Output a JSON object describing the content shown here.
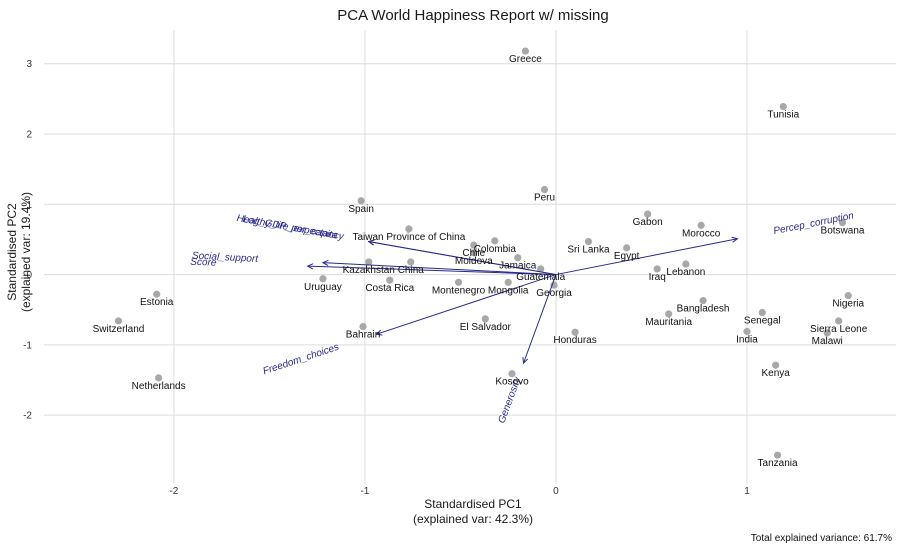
{
  "chart_data": {
    "type": "scatter",
    "title": "PCA World Happiness Report w/ missing",
    "xlabel": [
      "Standardised PC1",
      "(explained var: 42.3%)"
    ],
    "ylabel": [
      "Standardised PC2",
      "(explained var: 19.4%)"
    ],
    "caption": "Total explained variance: 61.7%",
    "xlim": [
      -2.68,
      1.78
    ],
    "ylim": [
      -2.98,
      3.48
    ],
    "xticks": [
      -2,
      -1,
      0,
      1
    ],
    "yticks": [
      -2,
      -1,
      0,
      1,
      2,
      3
    ],
    "grid": true,
    "colors": {
      "point": "#a8a8a8",
      "arrow": "#2a2a8c",
      "grid": "#dcdcdc"
    },
    "points": [
      {
        "label": "Greece",
        "x": -0.16,
        "y": 3.18
      },
      {
        "label": "Tunisia",
        "x": 1.19,
        "y": 2.39
      },
      {
        "label": "Peru",
        "x": -0.06,
        "y": 1.21
      },
      {
        "label": "Spain",
        "x": -1.02,
        "y": 1.05
      },
      {
        "label": "Gabon",
        "x": 0.48,
        "y": 0.86
      },
      {
        "label": "Morocco",
        "x": 0.76,
        "y": 0.7
      },
      {
        "label": "Botswana",
        "x": 1.5,
        "y": 0.74
      },
      {
        "label": "Taiwan Province of China",
        "x": -0.77,
        "y": 0.65
      },
      {
        "label": "Colombia",
        "x": -0.32,
        "y": 0.48
      },
      {
        "label": "Sri Lanka",
        "x": 0.17,
        "y": 0.47
      },
      {
        "label": "Chile",
        "x": -0.43,
        "y": 0.42
      },
      {
        "label": "Egypt",
        "x": 0.37,
        "y": 0.38
      },
      {
        "label": "Moldova",
        "x": -0.43,
        "y": 0.31
      },
      {
        "label": "Jamaica",
        "x": -0.2,
        "y": 0.24
      },
      {
        "label": "Lebanon",
        "x": 0.68,
        "y": 0.15
      },
      {
        "label": "Iraq",
        "x": 0.53,
        "y": 0.08
      },
      {
        "label": "Kazakhstan",
        "x": -0.98,
        "y": 0.18
      },
      {
        "label": "China",
        "x": -0.76,
        "y": 0.18
      },
      {
        "label": "Guatemala",
        "x": -0.08,
        "y": 0.08
      },
      {
        "label": "Uruguay",
        "x": -1.22,
        "y": -0.06
      },
      {
        "label": "Costa Rica",
        "x": -0.87,
        "y": -0.08
      },
      {
        "label": "Montenegro",
        "x": -0.51,
        "y": -0.11
      },
      {
        "label": "Mongolia",
        "x": -0.25,
        "y": -0.11
      },
      {
        "label": "Georgia",
        "x": -0.01,
        "y": -0.15
      },
      {
        "label": "Estonia",
        "x": -2.09,
        "y": -0.28
      },
      {
        "label": "Nigeria",
        "x": 1.53,
        "y": -0.3
      },
      {
        "label": "Bangladesh",
        "x": 0.77,
        "y": -0.37
      },
      {
        "label": "Mauritania",
        "x": 0.59,
        "y": -0.56
      },
      {
        "label": "Senegal",
        "x": 1.08,
        "y": -0.54
      },
      {
        "label": "Switzerland",
        "x": -2.29,
        "y": -0.66
      },
      {
        "label": "El Salvador",
        "x": -0.37,
        "y": -0.63
      },
      {
        "label": "Sierra Leone",
        "x": 1.48,
        "y": -0.66
      },
      {
        "label": "Bahrain",
        "x": -1.01,
        "y": -0.74
      },
      {
        "label": "Honduras",
        "x": 0.1,
        "y": -0.82
      },
      {
        "label": "India",
        "x": 1.0,
        "y": -0.81
      },
      {
        "label": "Malawi",
        "x": 1.42,
        "y": -0.83
      },
      {
        "label": "Kenya",
        "x": 1.15,
        "y": -1.29
      },
      {
        "label": "Kosovo",
        "x": -0.23,
        "y": -1.41
      },
      {
        "label": "Netherlands",
        "x": -2.08,
        "y": -1.47
      },
      {
        "label": "Tanzania",
        "x": 1.16,
        "y": -2.57
      }
    ],
    "loadings": [
      {
        "label": "Healthy_life_expectancy",
        "x": -0.98,
        "y": 0.47
      },
      {
        "label": "Log_GDP_per_capita",
        "x": -0.98,
        "y": 0.47
      },
      {
        "label": "Social_support",
        "x": -1.22,
        "y": 0.17
      },
      {
        "label": "Score",
        "x": -1.3,
        "y": 0.12
      },
      {
        "label": "Percep_corruption",
        "x": 0.95,
        "y": 0.51
      },
      {
        "label": "Freedom_choices",
        "x": -0.94,
        "y": -0.85
      },
      {
        "label": "Generosity",
        "x": -0.17,
        "y": -1.26
      }
    ]
  }
}
